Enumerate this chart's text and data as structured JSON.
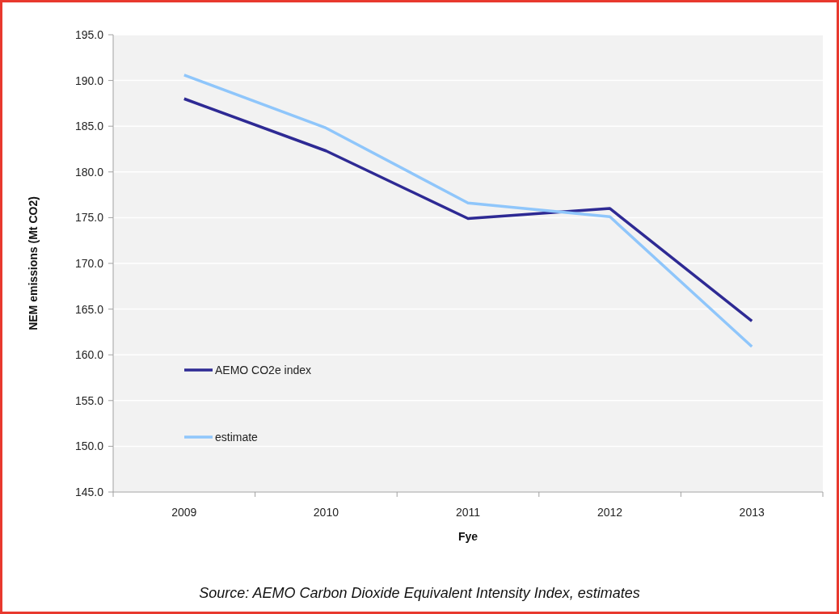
{
  "chart_data": {
    "type": "line",
    "xlabel": "Fye",
    "ylabel": "NEM emissions (Mt CO2)",
    "categories": [
      "2009",
      "2010",
      "2011",
      "2012",
      "2013"
    ],
    "series": [
      {
        "name": "AEMO CO2e index",
        "color": "#2e2a94",
        "values": [
          188.0,
          182.3,
          174.9,
          176.0,
          163.7
        ]
      },
      {
        "name": "estimate",
        "color": "#8fc6fb",
        "values": [
          190.6,
          184.8,
          176.6,
          175.1,
          160.9
        ]
      }
    ],
    "ylim": [
      145,
      195
    ],
    "yticks": [
      {
        "value": 145,
        "label": "145.0"
      },
      {
        "value": 150,
        "label": "150.0"
      },
      {
        "value": 155,
        "label": "155.0"
      },
      {
        "value": 160,
        "label": "160.0"
      },
      {
        "value": 165,
        "label": "165.0"
      },
      {
        "value": 170,
        "label": "170.0"
      },
      {
        "value": 175,
        "label": "175.0"
      },
      {
        "value": 180,
        "label": "180.0"
      },
      {
        "value": 185,
        "label": "185.0"
      },
      {
        "value": 190,
        "label": "190.0"
      },
      {
        "value": 195,
        "label": "195.0"
      }
    ],
    "grid": "y",
    "legend": "bottom left",
    "marker": "none",
    "line_style": "solid",
    "annotations": [
      "Source: AEMO Carbon Dioxide Equivalent Intensity Index, estimates"
    ]
  }
}
